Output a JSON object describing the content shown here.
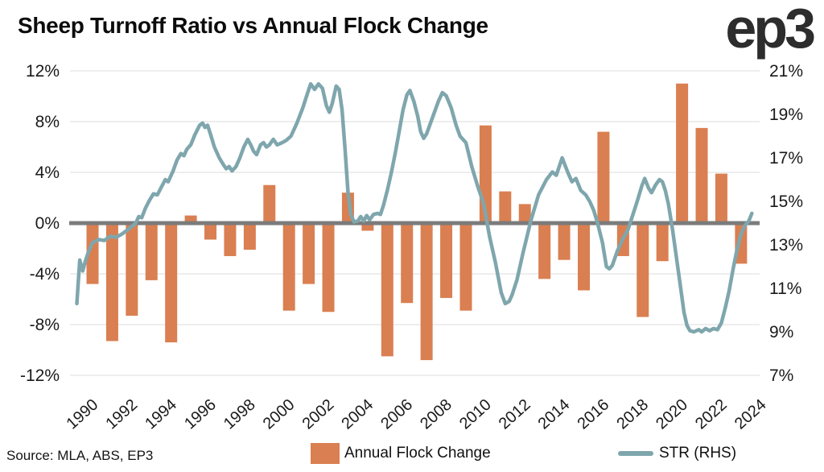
{
  "header": {
    "title": "Sheep Turnoff Ratio vs Annual Flock Change",
    "logo": "ep3"
  },
  "footer": {
    "source": "Source: MLA, ABS, EP3"
  },
  "legend": [
    {
      "label": "Annual Flock Change",
      "type": "bar"
    },
    {
      "label": "STR (RHS)",
      "type": "line"
    }
  ],
  "colors": {
    "bar": "#DA7F51",
    "line": "#7FA6AD",
    "zero_line": "#7b7b7b",
    "gridline": "#e8e8e8",
    "axis_text": "#1a1a1a",
    "title_text": "#0c0c0c",
    "logo_text": "#2d2d2d"
  },
  "chart_data": {
    "type": "combo",
    "title": "Sheep Turnoff Ratio vs Annual Flock Change",
    "grid": true,
    "legend_position": "bottom",
    "x_ticks": [
      1990,
      1992,
      1994,
      1996,
      1998,
      2000,
      2002,
      2004,
      2006,
      2008,
      2010,
      2012,
      2014,
      2016,
      2018,
      2020,
      2022,
      2024
    ],
    "left_axis": {
      "tick_labels": [
        "12%",
        "8%",
        "4%",
        "0%",
        "-4%",
        "-8%",
        "-12%"
      ],
      "tick_values": [
        12,
        8,
        4,
        0,
        -4,
        -8,
        -12
      ],
      "ylim": [
        -12,
        12
      ]
    },
    "right_axis": {
      "tick_labels": [
        "21%",
        "19%",
        "17%",
        "15%",
        "13%",
        "11%",
        "9%",
        "7%"
      ],
      "tick_values": [
        21,
        19,
        17,
        15,
        13,
        11,
        9,
        7
      ],
      "ylim": [
        7,
        21
      ]
    },
    "series": [
      {
        "type": "bar",
        "name": "Annual Flock Change",
        "axis": "left",
        "categories": [
          1990,
          1991,
          1992,
          1993,
          1994,
          1995,
          1996,
          1997,
          1998,
          1999,
          2000,
          2001,
          2002,
          2003,
          2004,
          2005,
          2006,
          2007,
          2008,
          2009,
          2010,
          2011,
          2012,
          2013,
          2014,
          2015,
          2016,
          2017,
          2018,
          2019,
          2020,
          2021,
          2022,
          2023
        ],
        "values": [
          -4.8,
          -9.3,
          -7.3,
          -4.5,
          -9.4,
          0.6,
          -1.3,
          -2.6,
          -2.1,
          3.0,
          -6.9,
          -4.8,
          -7.0,
          2.4,
          -0.6,
          -10.5,
          -6.3,
          -10.8,
          -5.9,
          -6.9,
          7.7,
          2.5,
          1.5,
          -4.4,
          -2.9,
          -5.3,
          7.2,
          -2.6,
          -7.4,
          -3.0,
          11.0,
          7.5,
          3.9,
          -3.2
        ]
      },
      {
        "type": "line",
        "name": "STR (RHS)",
        "axis": "right",
        "points": [
          [
            1989.2,
            10.3
          ],
          [
            1989.35,
            12.3
          ],
          [
            1989.5,
            11.8
          ],
          [
            1989.65,
            12.3
          ],
          [
            1989.8,
            12.7
          ],
          [
            1990.0,
            13.1
          ],
          [
            1990.3,
            13.25
          ],
          [
            1990.6,
            13.2
          ],
          [
            1990.9,
            13.4
          ],
          [
            1991.2,
            13.35
          ],
          [
            1991.5,
            13.5
          ],
          [
            1991.8,
            13.7
          ],
          [
            1992.2,
            14.0
          ],
          [
            1992.35,
            14.3
          ],
          [
            1992.5,
            14.25
          ],
          [
            1992.7,
            14.7
          ],
          [
            1992.9,
            15.05
          ],
          [
            1993.1,
            15.35
          ],
          [
            1993.3,
            15.3
          ],
          [
            1993.5,
            15.65
          ],
          [
            1993.7,
            16.0
          ],
          [
            1993.85,
            15.9
          ],
          [
            1994.1,
            16.4
          ],
          [
            1994.3,
            16.9
          ],
          [
            1994.5,
            17.2
          ],
          [
            1994.65,
            17.1
          ],
          [
            1994.8,
            17.4
          ],
          [
            1995.0,
            17.6
          ],
          [
            1995.2,
            18.05
          ],
          [
            1995.45,
            18.5
          ],
          [
            1995.6,
            18.6
          ],
          [
            1995.72,
            18.4
          ],
          [
            1995.85,
            18.5
          ],
          [
            1996.0,
            18.1
          ],
          [
            1996.2,
            17.5
          ],
          [
            1996.45,
            17.0
          ],
          [
            1996.65,
            16.7
          ],
          [
            1996.8,
            16.5
          ],
          [
            1996.95,
            16.6
          ],
          [
            1997.1,
            16.4
          ],
          [
            1997.3,
            16.6
          ],
          [
            1997.5,
            17.0
          ],
          [
            1997.7,
            17.5
          ],
          [
            1997.9,
            17.85
          ],
          [
            1998.05,
            17.6
          ],
          [
            1998.2,
            17.3
          ],
          [
            1998.35,
            17.15
          ],
          [
            1998.55,
            17.6
          ],
          [
            1998.7,
            17.7
          ],
          [
            1998.85,
            17.5
          ],
          [
            1999.0,
            17.6
          ],
          [
            1999.2,
            17.85
          ],
          [
            1999.4,
            17.6
          ],
          [
            1999.65,
            17.7
          ],
          [
            1999.85,
            17.8
          ],
          [
            2000.1,
            18.0
          ],
          [
            2000.4,
            18.6
          ],
          [
            2000.7,
            19.3
          ],
          [
            2000.95,
            20.0
          ],
          [
            2001.1,
            20.4
          ],
          [
            2001.3,
            20.15
          ],
          [
            2001.5,
            20.4
          ],
          [
            2001.7,
            20.2
          ],
          [
            2001.9,
            19.4
          ],
          [
            2002.05,
            19.1
          ],
          [
            2002.2,
            19.5
          ],
          [
            2002.4,
            20.3
          ],
          [
            2002.55,
            20.15
          ],
          [
            2002.7,
            19.2
          ],
          [
            2002.85,
            17.4
          ],
          [
            2003.0,
            15.4
          ],
          [
            2003.15,
            14.4
          ],
          [
            2003.3,
            14.05
          ],
          [
            2003.5,
            14.1
          ],
          [
            2003.65,
            14.3
          ],
          [
            2003.8,
            14.1
          ],
          [
            2003.95,
            14.35
          ],
          [
            2004.1,
            14.15
          ],
          [
            2004.3,
            14.4
          ],
          [
            2004.5,
            14.45
          ],
          [
            2004.65,
            14.4
          ],
          [
            2004.8,
            14.8
          ],
          [
            2005.0,
            15.5
          ],
          [
            2005.2,
            16.3
          ],
          [
            2005.4,
            17.2
          ],
          [
            2005.6,
            18.2
          ],
          [
            2005.8,
            19.2
          ],
          [
            2006.0,
            19.9
          ],
          [
            2006.15,
            20.1
          ],
          [
            2006.35,
            19.6
          ],
          [
            2006.55,
            18.9
          ],
          [
            2006.7,
            18.2
          ],
          [
            2006.85,
            17.9
          ],
          [
            2007.0,
            18.1
          ],
          [
            2007.2,
            18.6
          ],
          [
            2007.4,
            19.1
          ],
          [
            2007.6,
            19.6
          ],
          [
            2007.8,
            20.0
          ],
          [
            2008.0,
            19.85
          ],
          [
            2008.25,
            19.3
          ],
          [
            2008.5,
            18.5
          ],
          [
            2008.7,
            18.0
          ],
          [
            2009.0,
            17.7
          ],
          [
            2009.3,
            16.6
          ],
          [
            2009.6,
            15.7
          ],
          [
            2009.9,
            14.9
          ],
          [
            2010.2,
            13.4
          ],
          [
            2010.5,
            12.2
          ],
          [
            2010.8,
            10.8
          ],
          [
            2011.0,
            10.3
          ],
          [
            2011.2,
            10.4
          ],
          [
            2011.35,
            10.7
          ],
          [
            2011.6,
            11.4
          ],
          [
            2011.9,
            12.6
          ],
          [
            2012.3,
            14.1
          ],
          [
            2012.7,
            15.3
          ],
          [
            2013.1,
            16.0
          ],
          [
            2013.4,
            16.35
          ],
          [
            2013.6,
            16.2
          ],
          [
            2013.9,
            17.0
          ],
          [
            2014.2,
            16.3
          ],
          [
            2014.4,
            15.9
          ],
          [
            2014.6,
            16.05
          ],
          [
            2014.85,
            15.5
          ],
          [
            2015.1,
            15.3
          ],
          [
            2015.3,
            15.0
          ],
          [
            2015.5,
            14.6
          ],
          [
            2015.7,
            14.0
          ],
          [
            2015.95,
            13.1
          ],
          [
            2016.15,
            12.0
          ],
          [
            2016.3,
            11.9
          ],
          [
            2016.45,
            12.05
          ],
          [
            2016.7,
            12.7
          ],
          [
            2017.0,
            13.3
          ],
          [
            2017.25,
            13.7
          ],
          [
            2017.5,
            14.4
          ],
          [
            2017.75,
            15.1
          ],
          [
            2017.95,
            15.7
          ],
          [
            2018.1,
            16.05
          ],
          [
            2018.3,
            15.6
          ],
          [
            2018.45,
            15.4
          ],
          [
            2018.65,
            15.75
          ],
          [
            2018.85,
            16.0
          ],
          [
            2019.0,
            15.9
          ],
          [
            2019.15,
            15.5
          ],
          [
            2019.3,
            14.9
          ],
          [
            2019.5,
            13.8
          ],
          [
            2019.7,
            12.5
          ],
          [
            2019.9,
            11.2
          ],
          [
            2020.1,
            9.9
          ],
          [
            2020.25,
            9.3
          ],
          [
            2020.4,
            9.05
          ],
          [
            2020.6,
            9.0
          ],
          [
            2020.85,
            9.1
          ],
          [
            2021.0,
            9.0
          ],
          [
            2021.2,
            9.15
          ],
          [
            2021.4,
            9.05
          ],
          [
            2021.6,
            9.15
          ],
          [
            2021.8,
            9.1
          ],
          [
            2022.0,
            9.4
          ],
          [
            2022.2,
            10.1
          ],
          [
            2022.4,
            10.9
          ],
          [
            2022.6,
            11.9
          ],
          [
            2022.8,
            12.8
          ],
          [
            2023.0,
            13.5
          ],
          [
            2023.2,
            13.9
          ],
          [
            2023.4,
            14.1
          ],
          [
            2023.55,
            14.45
          ]
        ]
      }
    ]
  }
}
